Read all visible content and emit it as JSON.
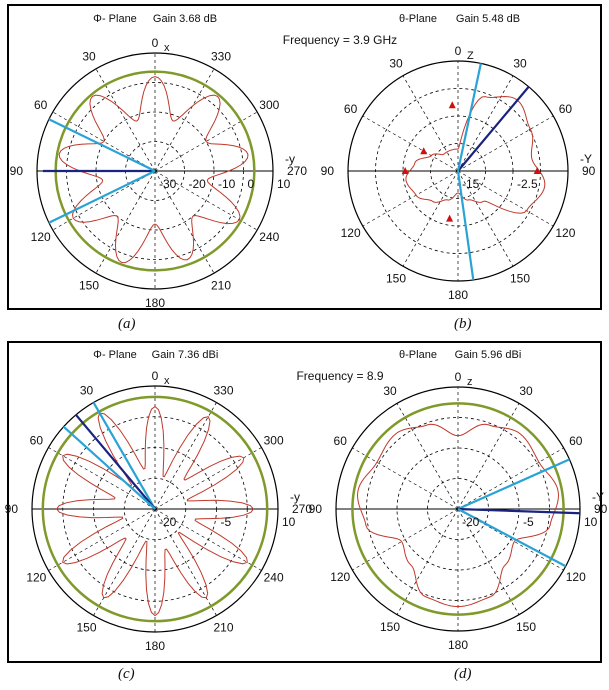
{
  "captions": [
    "(a)",
    "(b)",
    "(c)",
    "(d)"
  ],
  "colors": {
    "pattern": "#c0392b",
    "ring": "#7f9a2a",
    "beam_dark": "#1a237e",
    "beam_light": "#29a3d6",
    "marker": "#d01010",
    "grid": "#000000"
  },
  "chart_data": [
    {
      "type": "polar",
      "title_plane": "Φ- Plane",
      "title_gain": "Gain 3.68 dB",
      "frequency_label": "Frequency = 3.9 GHz",
      "axis_top": "0",
      "axis_top_sub": "x",
      "axis_right": "-y",
      "angle_labels": [
        "30",
        "330",
        "60",
        "300",
        "90",
        "270",
        "120",
        "240",
        "150",
        "210",
        "180"
      ],
      "radial_labels": [
        "-30",
        "-20",
        "-10",
        "0",
        "10"
      ],
      "radial_range": [
        -30,
        10
      ],
      "ring_value": 3.68,
      "pattern": {
        "angles_deg": [
          0,
          20,
          40,
          60,
          80,
          100,
          120,
          140,
          160,
          180,
          200,
          220,
          240,
          260,
          280,
          300,
          320,
          340
        ],
        "values_db": [
          2,
          -12,
          3,
          -10,
          2,
          -12,
          3,
          -10,
          2,
          -12,
          3,
          -10,
          2,
          -12,
          3,
          -10,
          3,
          -12
        ]
      },
      "beam_lines": [
        {
          "angle_deg": 270,
          "style": "dark",
          "value_db": 8
        },
        {
          "angle_deg": 296,
          "style": "light",
          "value_db": 10
        },
        {
          "angle_deg": 244,
          "style": "light",
          "value_db": 10
        }
      ],
      "markers": []
    },
    {
      "type": "polar",
      "title_plane": "θ-Plane",
      "title_gain": "Gain  5.48 dB",
      "frequency_label": "",
      "axis_top": "0",
      "axis_top_sub": "Z",
      "axis_right": "-Y",
      "angle_labels": [
        "30",
        "30",
        "60",
        "60",
        "90",
        "90",
        "120",
        "120",
        "150",
        "150",
        "180"
      ],
      "radial_labels": [
        "-15",
        "-2.5"
      ],
      "radial_range": [
        -15,
        10
      ],
      "ring_value": null,
      "pattern": {
        "angles_deg": [
          0,
          20,
          40,
          60,
          80,
          100,
          120,
          140,
          160,
          180,
          200,
          220,
          240,
          260,
          280,
          300,
          320,
          340
        ],
        "values_db": [
          -10,
          3,
          6,
          4,
          2,
          5,
          3,
          -6,
          -8,
          -10,
          -8,
          -6,
          -4,
          -3,
          -5,
          -8,
          -10,
          -10
        ]
      },
      "beam_lines": [
        {
          "angle_deg": 40,
          "style": "dark",
          "value_db": 10
        },
        {
          "angle_deg": 12,
          "style": "light",
          "value_db": 10
        },
        {
          "angle_deg": 172,
          "style": "light",
          "value_db": 10
        }
      ],
      "markers": [
        {
          "angle_deg": 355,
          "value_db": 0
        },
        {
          "angle_deg": 90,
          "value_db": 3
        },
        {
          "angle_deg": 270,
          "value_db": -3
        },
        {
          "angle_deg": 190,
          "value_db": -4
        },
        {
          "angle_deg": 300,
          "value_db": -6
        }
      ]
    },
    {
      "type": "polar",
      "title_plane": "Φ- Plane",
      "title_gain": "Gain 7.36 dBi",
      "frequency_label": "Frequency = 8.9",
      "axis_top": "0",
      "axis_top_sub": "x",
      "axis_right": "-y",
      "angle_labels": [
        "30",
        "330",
        "60",
        "300",
        "90",
        "270",
        "120",
        "240",
        "150",
        "210",
        "180"
      ],
      "radial_labels": [
        "-20",
        "-5",
        "10"
      ],
      "radial_range": [
        -20,
        10
      ],
      "ring_value": 7.36,
      "pattern": {
        "angles_deg": [
          0,
          15,
          30,
          45,
          60,
          75,
          90,
          105,
          120,
          135,
          150,
          165,
          180,
          195,
          210,
          225,
          240,
          255,
          270,
          285,
          300,
          315,
          330,
          345
        ],
        "values_db": [
          5,
          -12,
          6,
          -10,
          5,
          -12,
          4,
          -10,
          6,
          -12,
          5,
          -10,
          6,
          -12,
          5,
          -10,
          6,
          -12,
          4,
          -10,
          6,
          -12,
          7,
          -10
        ]
      },
      "beam_lines": [
        {
          "angle_deg": 330,
          "style": "light",
          "value_db": 10
        },
        {
          "angle_deg": 320,
          "style": "dark",
          "value_db": 10
        },
        {
          "angle_deg": 312,
          "style": "light",
          "value_db": 10
        }
      ],
      "markers": []
    },
    {
      "type": "polar",
      "title_plane": "θ-Plane",
      "title_gain": "Gain 5.96 dBi",
      "frequency_label": "",
      "axis_top": "0",
      "axis_top_sub": "z",
      "axis_right": "-Y",
      "angle_labels": [
        "30",
        "30",
        "60",
        "60",
        "90",
        "90",
        "120",
        "120",
        "150",
        "150",
        "180"
      ],
      "radial_labels": [
        "-20",
        "-5",
        "10"
      ],
      "radial_range": [
        -20,
        10
      ],
      "ring_value": 5.96,
      "pattern": {
        "angles_deg": [
          0,
          20,
          40,
          60,
          80,
          100,
          120,
          140,
          160,
          180,
          200,
          220,
          240,
          260,
          280,
          300,
          320,
          340
        ],
        "values_db": [
          -2,
          2,
          4,
          3,
          5,
          3,
          -4,
          -2,
          3,
          4,
          3,
          -2,
          -4,
          3,
          5,
          3,
          4,
          2
        ]
      },
      "beam_lines": [
        {
          "angle_deg": 66,
          "style": "light",
          "value_db": 10
        },
        {
          "angle_deg": 92,
          "style": "dark",
          "value_db": 10
        },
        {
          "angle_deg": 118,
          "style": "light",
          "value_db": 10
        }
      ],
      "markers": []
    }
  ]
}
